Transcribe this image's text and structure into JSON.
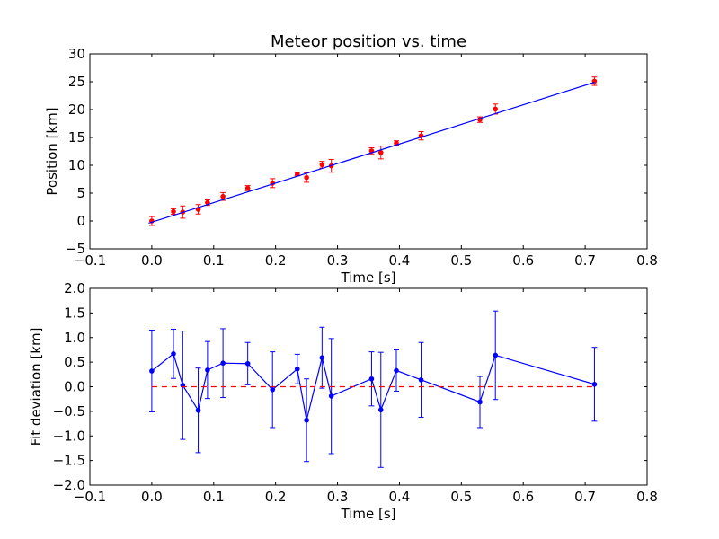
{
  "colors": {
    "fit_line": "#0000ff",
    "measurement": "#ff0000",
    "deviation": "#0000ff",
    "zero_line": "#ff0000",
    "axes": "#000000",
    "background": "#ffffff"
  },
  "chart_data": [
    {
      "type": "scatter",
      "title": "Meteor position vs. time",
      "xlabel": "Time [s]",
      "ylabel": "Position [km]",
      "xlim": [
        -0.1,
        0.8
      ],
      "ylim": [
        -5,
        30
      ],
      "x_ticks": [
        -0.1,
        0.0,
        0.1,
        0.2,
        0.3,
        0.4,
        0.5,
        0.6,
        0.7,
        0.8
      ],
      "x_tick_labels": [
        "−0.1",
        "0.0",
        "0.1",
        "0.2",
        "0.3",
        "0.4",
        "0.5",
        "0.6",
        "0.7",
        "0.8"
      ],
      "y_ticks": [
        -5,
        0,
        5,
        10,
        15,
        20,
        25,
        30
      ],
      "y_tick_labels": [
        "−5",
        "0",
        "5",
        "10",
        "15",
        "20",
        "25",
        "30"
      ],
      "grid": false,
      "series": [
        {
          "kind": "errorbar",
          "marker": "dot",
          "x": [
            0.0,
            0.035,
            0.05,
            0.075,
            0.09,
            0.115,
            0.155,
            0.195,
            0.235,
            0.25,
            0.275,
            0.29,
            0.355,
            0.37,
            0.395,
            0.435,
            0.53,
            0.555,
            0.715
          ],
          "y": [
            0.0,
            1.7,
            1.6,
            2.1,
            3.3,
            4.4,
            5.9,
            6.8,
            8.4,
            7.8,
            10.1,
            9.9,
            12.6,
            12.3,
            14.0,
            15.3,
            18.2,
            20.1,
            25.1
          ],
          "yerr": [
            0.8,
            0.5,
            1.1,
            0.85,
            0.5,
            0.7,
            0.45,
            0.8,
            0.3,
            0.85,
            0.6,
            1.15,
            0.55,
            1.15,
            0.4,
            0.75,
            0.5,
            0.9,
            0.75
          ]
        },
        {
          "kind": "line",
          "x": [
            -0.005,
            0.715
          ],
          "y": [
            -0.4,
            24.9
          ]
        }
      ]
    },
    {
      "type": "line",
      "xlabel": "Time [s]",
      "ylabel": "Fit deviation [km]",
      "xlim": [
        -0.1,
        0.8
      ],
      "ylim": [
        -2.0,
        2.0
      ],
      "x_ticks": [
        -0.1,
        0.0,
        0.1,
        0.2,
        0.3,
        0.4,
        0.5,
        0.6,
        0.7,
        0.8
      ],
      "x_tick_labels": [
        "−0.1",
        "0.0",
        "0.1",
        "0.2",
        "0.3",
        "0.4",
        "0.5",
        "0.6",
        "0.7",
        "0.8"
      ],
      "y_ticks": [
        -2.0,
        -1.5,
        -1.0,
        -0.5,
        0.0,
        0.5,
        1.0,
        1.5,
        2.0
      ],
      "y_tick_labels": [
        "−2.0",
        "−1.5",
        "−1.0",
        "−0.5",
        "0.0",
        "0.5",
        "1.0",
        "1.5",
        "2.0"
      ],
      "grid": false,
      "series": [
        {
          "kind": "errorbar-line",
          "marker": "dot",
          "x": [
            0.0,
            0.035,
            0.05,
            0.075,
            0.09,
            0.115,
            0.155,
            0.195,
            0.235,
            0.25,
            0.275,
            0.29,
            0.355,
            0.37,
            0.395,
            0.435,
            0.53,
            0.555,
            0.715
          ],
          "y": [
            0.32,
            0.67,
            0.03,
            -0.48,
            0.34,
            0.48,
            0.47,
            -0.06,
            0.36,
            -0.68,
            0.59,
            -0.19,
            0.16,
            -0.47,
            0.33,
            0.14,
            -0.31,
            0.64,
            0.05
          ],
          "yerr": [
            0.83,
            0.5,
            1.1,
            0.86,
            0.58,
            0.7,
            0.43,
            0.77,
            0.3,
            0.84,
            0.62,
            1.17,
            0.55,
            1.17,
            0.42,
            0.76,
            0.52,
            0.9,
            0.75
          ]
        },
        {
          "kind": "dashed-line",
          "x": [
            0.0,
            0.715
          ],
          "y": [
            0.0,
            0.0
          ]
        }
      ]
    }
  ]
}
